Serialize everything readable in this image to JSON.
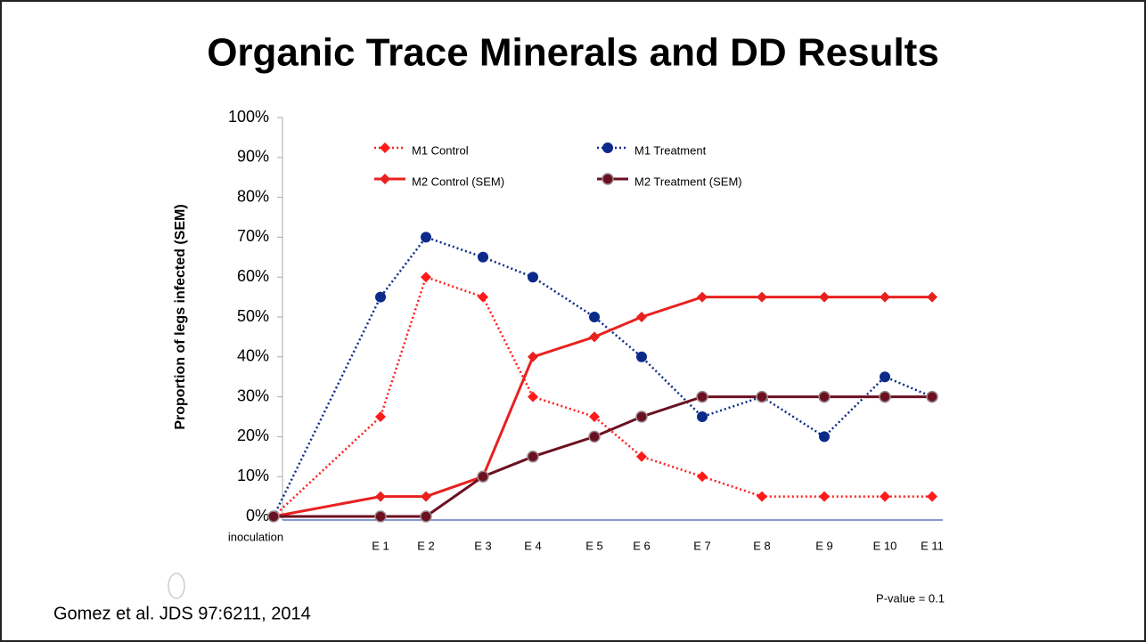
{
  "chart_data": {
    "type": "line",
    "title": "Organic Trace Minerals and DD Results",
    "y_label": "Proportion of legs infected (SEM)",
    "categories": [
      "inoculation",
      "E 1",
      "E 2",
      "E 3",
      "E 4",
      "E 5",
      "E 6",
      "E 7",
      "E 8",
      "E 9",
      "E 10",
      "E 11"
    ],
    "series": [
      {
        "name": "M1 Control",
        "color": "#ff1a1a",
        "style": "dotted",
        "marker": "diamond",
        "values": [
          0,
          25,
          60,
          55,
          30,
          25,
          15,
          10,
          5,
          5,
          5,
          5
        ]
      },
      {
        "name": "M1 Treatment",
        "color": "#0b2a8a",
        "style": "dotted",
        "marker": "circle",
        "values": [
          0,
          55,
          70,
          65,
          60,
          50,
          40,
          25,
          30,
          20,
          35,
          30
        ]
      },
      {
        "name": "M2 Control (SEM)",
        "color": "#e8211f",
        "style": "solid",
        "marker": "diamond",
        "values": [
          0,
          5,
          5,
          10,
          40,
          45,
          50,
          55,
          55,
          55,
          55,
          55
        ]
      },
      {
        "name": "M2 Treatment (SEM)",
        "color": "#6b1020",
        "style": "solid",
        "marker": "circle",
        "values": [
          0,
          0,
          0,
          10,
          15,
          20,
          25,
          30,
          30,
          30,
          30,
          30
        ]
      }
    ],
    "ylim": [
      0,
      100
    ],
    "yticks": [
      {
        "value": 0,
        "label": "0%"
      },
      {
        "value": 10,
        "label": "10%"
      },
      {
        "value": 20,
        "label": "20%"
      },
      {
        "value": 30,
        "label": "30%"
      },
      {
        "value": 40,
        "label": "40%"
      },
      {
        "value": 50,
        "label": "50%"
      },
      {
        "value": 60,
        "label": "60%"
      },
      {
        "value": 70,
        "label": "70%"
      },
      {
        "value": 80,
        "label": "80%"
      },
      {
        "value": 90,
        "label": "90%"
      },
      {
        "value": 100,
        "label": "100%"
      }
    ],
    "source": "Gomez et al. JDS 97:6211, 2014",
    "annotation": "P-value = 0.1"
  }
}
